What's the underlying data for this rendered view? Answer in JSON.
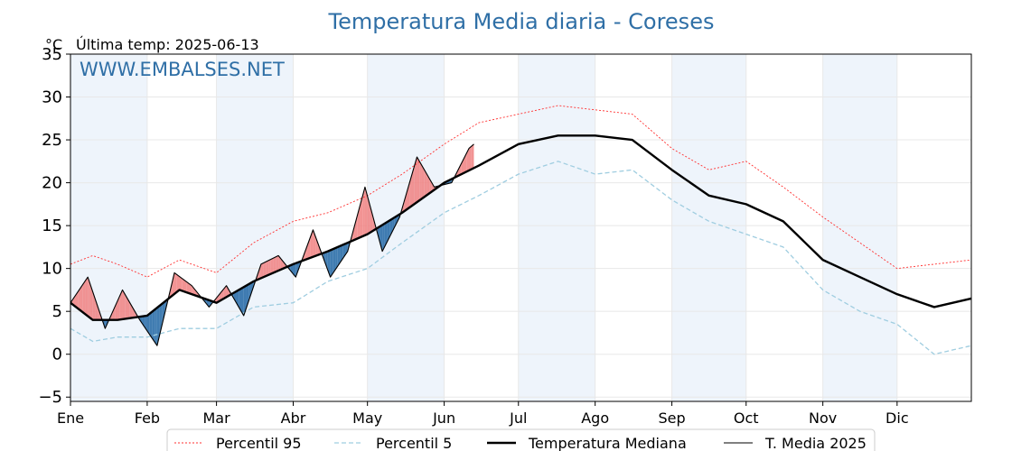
{
  "chart_data": {
    "type": "line",
    "title": "Temperatura Media diaria - Coreses",
    "unit": "°C",
    "subtitle": "Última temp: 2025-06-13",
    "watermark": "WWW.EMBALSES.NET",
    "ylim": [
      -5.5,
      35
    ],
    "y_ticks": [
      -5,
      0,
      5,
      10,
      15,
      20,
      25,
      30,
      35
    ],
    "y_tick_labels": [
      "−5",
      "0",
      "5",
      "10",
      "15",
      "20",
      "25",
      "30",
      "35"
    ],
    "x_ticks": [
      {
        "label": "Ene",
        "day": 1
      },
      {
        "label": "Feb",
        "day": 32
      },
      {
        "label": "Mar",
        "day": 60
      },
      {
        "label": "Abr",
        "day": 91
      },
      {
        "label": "May",
        "day": 121
      },
      {
        "label": "Jun",
        "day": 152
      },
      {
        "label": "Jul",
        "day": 182
      },
      {
        "label": "Ago",
        "day": 213
      },
      {
        "label": "Sep",
        "day": 244
      },
      {
        "label": "Oct",
        "day": 274
      },
      {
        "label": "Nov",
        "day": 305
      },
      {
        "label": "Dic",
        "day": 335
      }
    ],
    "xlim": [
      1,
      365
    ],
    "grid": true,
    "legend_position": "bottom-center",
    "shaded_months": [
      "Ene",
      "Mar",
      "May",
      "Jul",
      "Sep",
      "Nov"
    ],
    "colors": {
      "p95": "#ff3030",
      "p5": "#9fcde0",
      "median": "#000000",
      "t2025": "#000000",
      "above_fill": "#f08080",
      "below_fill": "#2b6ea8",
      "shade": "#eef4fb",
      "title": "#2f6fa6"
    },
    "series": [
      {
        "name": "Percentil 95",
        "x": [
          1,
          10,
          20,
          32,
          45,
          60,
          75,
          91,
          105,
          121,
          135,
          152,
          166,
          182,
          198,
          213,
          228,
          244,
          259,
          274,
          289,
          305,
          320,
          335,
          350,
          365
        ],
        "values": [
          10.5,
          11.5,
          10.5,
          9.0,
          11.0,
          9.5,
          13.0,
          15.5,
          16.5,
          18.5,
          21.0,
          24.5,
          27.0,
          28.0,
          29.0,
          28.5,
          28.0,
          24.0,
          21.5,
          22.5,
          19.5,
          16.0,
          13.0,
          10.0,
          10.5,
          11.0
        ]
      },
      {
        "name": "Percentil 5",
        "x": [
          1,
          10,
          20,
          32,
          45,
          60,
          75,
          91,
          105,
          121,
          135,
          152,
          166,
          182,
          198,
          213,
          228,
          244,
          259,
          274,
          289,
          305,
          320,
          335,
          350,
          365
        ],
        "values": [
          3.0,
          1.5,
          2.0,
          2.0,
          3.0,
          3.0,
          5.5,
          6.0,
          8.5,
          10.0,
          13.0,
          16.5,
          18.5,
          21.0,
          22.5,
          21.0,
          21.5,
          18.0,
          15.5,
          14.0,
          12.5,
          7.5,
          5.0,
          3.5,
          0.0,
          1.0
        ]
      },
      {
        "name": "Temperatura Mediana",
        "x": [
          1,
          10,
          20,
          32,
          45,
          60,
          75,
          91,
          105,
          121,
          135,
          152,
          166,
          182,
          198,
          213,
          228,
          244,
          259,
          274,
          289,
          305,
          320,
          335,
          350,
          365
        ],
        "values": [
          6.0,
          4.0,
          4.0,
          4.5,
          7.5,
          6.0,
          8.5,
          10.5,
          12.0,
          14.0,
          16.5,
          20.0,
          22.0,
          24.5,
          25.5,
          25.5,
          25.0,
          21.5,
          18.5,
          17.5,
          15.5,
          11.0,
          9.0,
          7.0,
          5.5,
          6.5
        ]
      },
      {
        "name": "T. Media 2025",
        "x": [
          1,
          8,
          15,
          22,
          29,
          36,
          43,
          50,
          57,
          64,
          71,
          78,
          85,
          92,
          99,
          106,
          113,
          120,
          127,
          134,
          141,
          148,
          155,
          162,
          164
        ],
        "values": [
          6.0,
          9.0,
          3.0,
          7.5,
          4.0,
          1.0,
          9.5,
          8.0,
          5.5,
          8.0,
          4.5,
          10.5,
          11.5,
          9.0,
          14.5,
          9.0,
          12.0,
          19.5,
          12.0,
          16.0,
          23.0,
          19.5,
          20.0,
          24.0,
          24.5
        ]
      }
    ],
    "legend": [
      {
        "label": "Percentil 95",
        "key": "p95"
      },
      {
        "label": "Percentil 5",
        "key": "p5"
      },
      {
        "label": "Temperatura Mediana",
        "key": "median"
      },
      {
        "label": "T. Media 2025",
        "key": "t2025"
      }
    ]
  }
}
